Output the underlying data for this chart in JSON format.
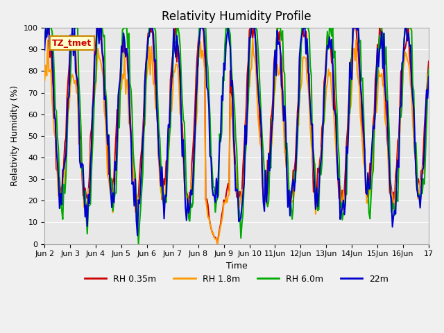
{
  "title": "Relativity Humidity Profile",
  "ylabel": "Relativity Humidity (%)",
  "xlabel": "Time",
  "ylim": [
    0,
    100
  ],
  "bg_color": "#e8e8e8",
  "plot_bg": "#e8e8e8",
  "annotation": "TZ_tmet",
  "legend": [
    "RH 0.35m",
    "RH 1.8m",
    "RH 6.0m",
    "22m"
  ],
  "colors": [
    "#cc0000",
    "#ff9900",
    "#00aa00",
    "#0000cc"
  ],
  "xtick_labels": [
    "Jun 2",
    "Jun 3",
    "Jun 4",
    "Jun 5",
    "Jun 6",
    "Jun 7",
    "Jun 8",
    "Jun 9",
    "Jun 10",
    "11Jun",
    "12Jun",
    "13Jun",
    "14Jun",
    "15Jun",
    "16Jun",
    "17"
  ],
  "xtick_positions": [
    0,
    24,
    48,
    72,
    96,
    120,
    144,
    168,
    192,
    216,
    240,
    264,
    288,
    312,
    336,
    360
  ]
}
